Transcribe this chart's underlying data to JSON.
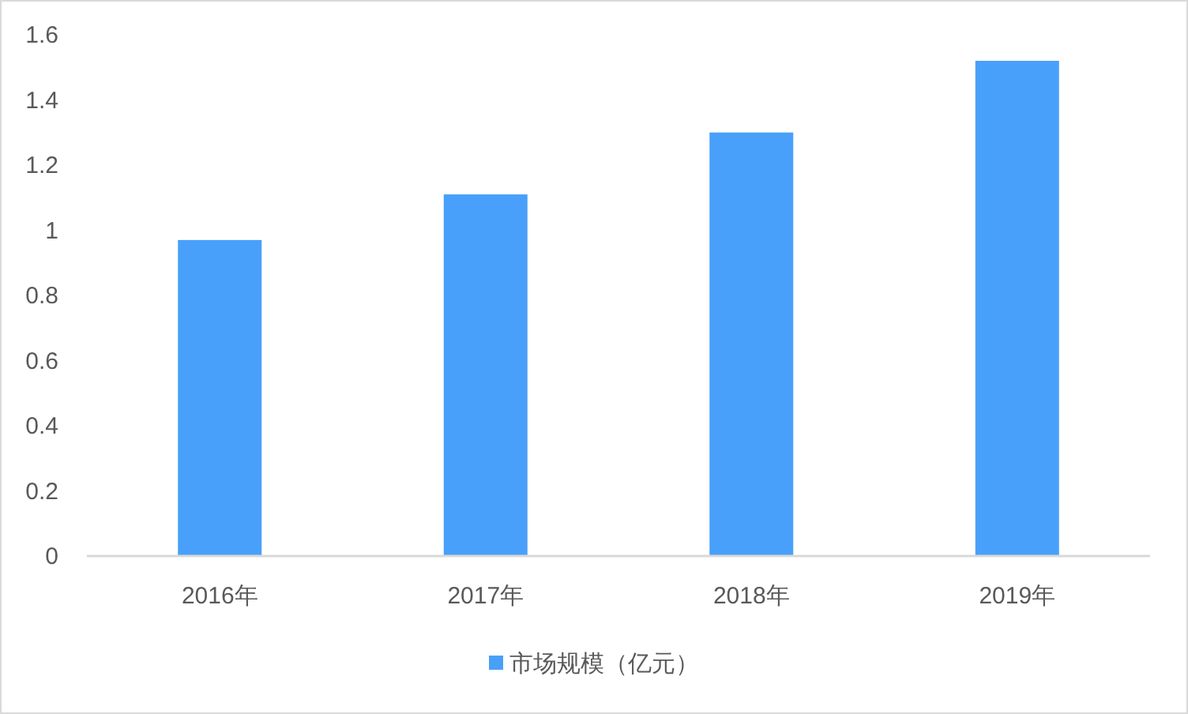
{
  "chart_data": {
    "type": "bar",
    "categories": [
      "2016年",
      "2017年",
      "2018年",
      "2019年"
    ],
    "series": [
      {
        "name": "市场规模（亿元）",
        "color": "#48a0fa",
        "values": [
          0.97,
          1.11,
          1.3,
          1.52
        ]
      }
    ],
    "ylim": [
      0,
      1.6
    ],
    "yticks": [
      0,
      0.2,
      0.4,
      0.6,
      0.8,
      1,
      1.2,
      1.4,
      1.6
    ],
    "legend": "bottom"
  }
}
